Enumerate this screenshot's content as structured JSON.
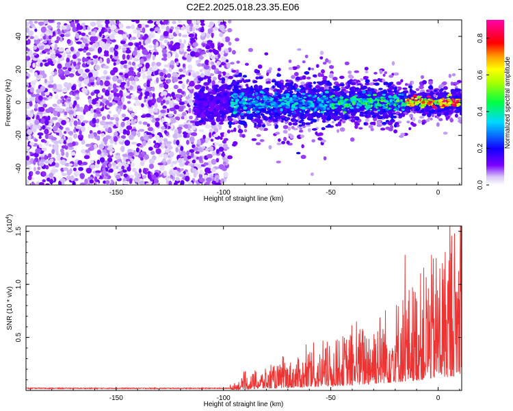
{
  "title": "C2E2.2025.018.23.35.E06",
  "chart_data": [
    {
      "type": "heatmap",
      "title": "C2E2.2025.018.23.35.E06",
      "xlabel": "Height of straight line (km)",
      "ylabel": "Frequency (Hz)",
      "xlim": [
        -192,
        11
      ],
      "ylim": [
        -50,
        50
      ],
      "xticks": [
        -150,
        -100,
        -50,
        0
      ],
      "yticks": [
        -40,
        -20,
        0,
        20,
        40
      ],
      "colorbar": {
        "label": "Normalized spectral amplitude",
        "range": [
          0,
          0.9
        ],
        "ticks": [
          0.0,
          0.2,
          0.4,
          0.6,
          0.8
        ],
        "tick_labels": [
          "0.0",
          "0.2",
          "0.4",
          "0.6",
          "0.8"
        ]
      },
      "regions": [
        {
          "x_range": [
            -192,
            -97
          ],
          "freq_range": [
            -50,
            50
          ],
          "amplitude": "low-moderate (0.05-0.15), scattered noise"
        },
        {
          "x_range": [
            -112,
            -97
          ],
          "freq_range": [
            -10,
            10
          ],
          "amplitude": "~0.15"
        },
        {
          "x_range": [
            -97,
            -50
          ],
          "freq_center": 0,
          "freq_halfwidth": 8,
          "amplitude": "0.15-0.45"
        },
        {
          "x_range": [
            -50,
            -15
          ],
          "freq_center": 0,
          "freq_halfwidth": 6,
          "amplitude": "0.2-0.55"
        },
        {
          "x_range": [
            -15,
            11
          ],
          "freq_center": 0,
          "freq_halfwidth": 4,
          "amplitude": "0.5-0.9 peak near 0 Hz"
        }
      ]
    },
    {
      "type": "line",
      "xlabel": "Height of straight line (km)",
      "ylabel": "SNR (10 * v/v)",
      "y_multiplier": "(x10^4)",
      "xlim": [
        -192,
        11
      ],
      "ylim": [
        0,
        1.55
      ],
      "xticks": [
        -150,
        -100,
        -50,
        0
      ],
      "yticks": [
        0.5,
        1.0,
        1.5
      ],
      "ytick_labels": [
        "0.5",
        "1.0",
        "1.5"
      ],
      "series": [
        {
          "color": "#ee3333",
          "x": [
            -192,
            -180,
            -170,
            -160,
            -150,
            -140,
            -130,
            -120,
            -110,
            -100,
            -95,
            -90,
            -85,
            -80,
            -75,
            -70,
            -65,
            -60,
            -55,
            -50,
            -45,
            -40,
            -35,
            -30,
            -25,
            -20,
            -15,
            -10,
            -5,
            0,
            5,
            10,
            11
          ],
          "y": [
            0.02,
            0.02,
            0.02,
            0.02,
            0.02,
            0.02,
            0.02,
            0.02,
            0.02,
            0.02,
            0.04,
            0.08,
            0.1,
            0.12,
            0.14,
            0.16,
            0.18,
            0.2,
            0.22,
            0.25,
            0.3,
            0.32,
            0.36,
            0.42,
            0.46,
            0.5,
            0.56,
            0.62,
            0.7,
            0.78,
            0.85,
            0.95,
            1.55
          ]
        }
      ]
    }
  ]
}
